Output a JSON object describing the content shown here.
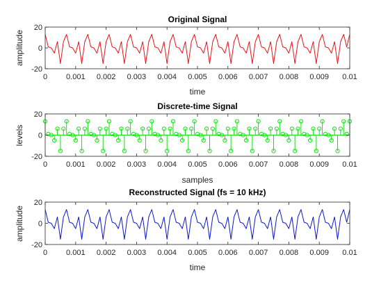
{
  "colors": {
    "background": "#ffffff",
    "axes": "#262626",
    "original_line": "#e8141a",
    "discrete_stem": "#16e016",
    "reconstructed_line": "#0c16cc"
  },
  "chart_data": [
    {
      "type": "line",
      "title": "Original Signal",
      "xlabel": "time",
      "ylabel": "amplitude",
      "xlim": [
        0,
        0.01
      ],
      "ylim": [
        -20,
        20
      ],
      "xticks": [
        "0",
        "0.001",
        "0.002",
        "0.003",
        "0.004",
        "0.005",
        "0.006",
        "0.007",
        "0.008",
        "0.009",
        "0.01"
      ],
      "yticks": [
        "-20",
        "0",
        "20"
      ],
      "grid": false,
      "signal_period_s": 0.0006667,
      "series": [
        {
          "color": "#e8141a",
          "x": [
            0,
            0.0001,
            0.0002,
            0.0003,
            0.0004,
            0.0005,
            0.0006,
            0.0007,
            0.0008,
            0.0009,
            0.001,
            0.0011,
            0.0012,
            0.0013,
            0.0014,
            0.0015,
            0.0016,
            0.0017,
            0.0018,
            0.0019,
            0.002,
            0.0021,
            0.0022,
            0.0023,
            0.0024,
            0.0025,
            0.0026,
            0.0027,
            0.0028,
            0.0029,
            0.003,
            0.0031,
            0.0032,
            0.0033,
            0.0034,
            0.0035,
            0.0036,
            0.0037,
            0.0038,
            0.0039,
            0.004,
            0.0041,
            0.0042,
            0.0043,
            0.0044,
            0.0045,
            0.0046,
            0.0047,
            0.0048,
            0.0049,
            0.005,
            0.0051,
            0.0052,
            0.0053,
            0.0054,
            0.0055,
            0.0056,
            0.0057,
            0.0058,
            0.0059,
            0.006,
            0.0061,
            0.0062,
            0.0063,
            0.0064,
            0.0065,
            0.0066,
            0.0067,
            0.0068,
            0.0069,
            0.007,
            0.0071,
            0.0072,
            0.0073,
            0.0074,
            0.0075,
            0.0076,
            0.0077,
            0.0078,
            0.0079,
            0.008,
            0.0081,
            0.0082,
            0.0083,
            0.0084,
            0.0085,
            0.0086,
            0.0087,
            0.0088,
            0.0089,
            0.009,
            0.0091,
            0.0092,
            0.0093,
            0.0094,
            0.0095,
            0.0096,
            0.0097,
            0.0098,
            0.0099,
            0.01
          ],
          "y": [
            13,
            1,
            0,
            -5,
            6,
            -15,
            6,
            13,
            1,
            0,
            -5,
            6,
            -15,
            6,
            13,
            1,
            0,
            -5,
            6,
            -15,
            6,
            13,
            1,
            0,
            -5,
            6,
            -15,
            6,
            13,
            1,
            0,
            -5,
            6,
            -15,
            6,
            13,
            1,
            0,
            -5,
            6,
            -15,
            6,
            13,
            1,
            0,
            -5,
            6,
            -15,
            6,
            13,
            1,
            0,
            -5,
            6,
            -15,
            6,
            13,
            1,
            0,
            -5,
            6,
            -15,
            6,
            13,
            1,
            0,
            -5,
            6,
            -15,
            6,
            13,
            1,
            0,
            -5,
            6,
            -15,
            6,
            13,
            1,
            0,
            -5,
            6,
            -15,
            6,
            13,
            1,
            0,
            -5,
            6,
            -15,
            6,
            13,
            1,
            0,
            -5,
            6,
            -15,
            6,
            13,
            1,
            13
          ]
        }
      ]
    },
    {
      "type": "stem",
      "title": "Discrete-time Signal",
      "xlabel": "samples",
      "ylabel": "levels",
      "xlim": [
        0,
        0.01
      ],
      "ylim": [
        -20,
        20
      ],
      "xticks": [
        "0",
        "0.001",
        "0.002",
        "0.003",
        "0.004",
        "0.005",
        "0.006",
        "0.007",
        "0.008",
        "0.009",
        "0.01"
      ],
      "yticks": [
        "-20",
        "0",
        "20"
      ],
      "grid": false,
      "series": [
        {
          "color": "#16e016",
          "marker": "circle",
          "x": [
            0,
            0.0001,
            0.0002,
            0.0003,
            0.0004,
            0.0005,
            0.0006,
            0.0007,
            0.0008,
            0.0009,
            0.001,
            0.0011,
            0.0012,
            0.0013,
            0.0014,
            0.0015,
            0.0016,
            0.0017,
            0.0018,
            0.0019,
            0.002,
            0.0021,
            0.0022,
            0.0023,
            0.0024,
            0.0025,
            0.0026,
            0.0027,
            0.0028,
            0.0029,
            0.003,
            0.0031,
            0.0032,
            0.0033,
            0.0034,
            0.0035,
            0.0036,
            0.0037,
            0.0038,
            0.0039,
            0.004,
            0.0041,
            0.0042,
            0.0043,
            0.0044,
            0.0045,
            0.0046,
            0.0047,
            0.0048,
            0.0049,
            0.005,
            0.0051,
            0.0052,
            0.0053,
            0.0054,
            0.0055,
            0.0056,
            0.0057,
            0.0058,
            0.0059,
            0.006,
            0.0061,
            0.0062,
            0.0063,
            0.0064,
            0.0065,
            0.0066,
            0.0067,
            0.0068,
            0.0069,
            0.007,
            0.0071,
            0.0072,
            0.0073,
            0.0074,
            0.0075,
            0.0076,
            0.0077,
            0.0078,
            0.0079,
            0.008,
            0.0081,
            0.0082,
            0.0083,
            0.0084,
            0.0085,
            0.0086,
            0.0087,
            0.0088,
            0.0089,
            0.009,
            0.0091,
            0.0092,
            0.0093,
            0.0094,
            0.0095,
            0.0096,
            0.0097,
            0.0098,
            0.0099,
            0.01
          ],
          "y": [
            13,
            1,
            0,
            -5,
            6,
            -15,
            6,
            13,
            1,
            0,
            -5,
            6,
            -15,
            6,
            13,
            1,
            0,
            -5,
            6,
            -15,
            6,
            13,
            1,
            0,
            -5,
            6,
            -15,
            6,
            13,
            1,
            0,
            -5,
            6,
            -15,
            6,
            13,
            1,
            0,
            -5,
            6,
            -15,
            6,
            13,
            1,
            0,
            -5,
            6,
            -15,
            6,
            13,
            1,
            0,
            -5,
            6,
            -15,
            6,
            13,
            1,
            0,
            -5,
            6,
            -15,
            6,
            13,
            1,
            0,
            -5,
            6,
            -15,
            6,
            13,
            1,
            0,
            -5,
            6,
            -15,
            6,
            13,
            1,
            0,
            -5,
            6,
            -15,
            6,
            13,
            1,
            0,
            -5,
            6,
            -15,
            6,
            13,
            1,
            0,
            -5,
            6,
            -15,
            6,
            13,
            1,
            13
          ]
        }
      ]
    },
    {
      "type": "line",
      "title": "Reconstructed Signal (fs = 10 kHz)",
      "xlabel": "time",
      "ylabel": "amplitude",
      "xlim": [
        0,
        0.01
      ],
      "ylim": [
        -20,
        20
      ],
      "xticks": [
        "0",
        "0.001",
        "0.002",
        "0.003",
        "0.004",
        "0.005",
        "0.006",
        "0.007",
        "0.008",
        "0.009",
        "0.01"
      ],
      "yticks": [
        "-20",
        "0",
        "20"
      ],
      "grid": false,
      "series": [
        {
          "color": "#0c16cc",
          "x": [
            0,
            0.0001,
            0.0002,
            0.0003,
            0.0004,
            0.0005,
            0.0006,
            0.0007,
            0.0008,
            0.0009,
            0.001,
            0.0011,
            0.0012,
            0.0013,
            0.0014,
            0.0015,
            0.0016,
            0.0017,
            0.0018,
            0.0019,
            0.002,
            0.0021,
            0.0022,
            0.0023,
            0.0024,
            0.0025,
            0.0026,
            0.0027,
            0.0028,
            0.0029,
            0.003,
            0.0031,
            0.0032,
            0.0033,
            0.0034,
            0.0035,
            0.0036,
            0.0037,
            0.0038,
            0.0039,
            0.004,
            0.0041,
            0.0042,
            0.0043,
            0.0044,
            0.0045,
            0.0046,
            0.0047,
            0.0048,
            0.0049,
            0.005,
            0.0051,
            0.0052,
            0.0053,
            0.0054,
            0.0055,
            0.0056,
            0.0057,
            0.0058,
            0.0059,
            0.006,
            0.0061,
            0.0062,
            0.0063,
            0.0064,
            0.0065,
            0.0066,
            0.0067,
            0.0068,
            0.0069,
            0.007,
            0.0071,
            0.0072,
            0.0073,
            0.0074,
            0.0075,
            0.0076,
            0.0077,
            0.0078,
            0.0079,
            0.008,
            0.0081,
            0.0082,
            0.0083,
            0.0084,
            0.0085,
            0.0086,
            0.0087,
            0.0088,
            0.0089,
            0.009,
            0.0091,
            0.0092,
            0.0093,
            0.0094,
            0.0095,
            0.0096,
            0.0097,
            0.0098,
            0.0099,
            0.01
          ],
          "y": [
            13,
            1,
            0,
            -5,
            6,
            -15,
            6,
            13,
            1,
            0,
            -5,
            6,
            -15,
            6,
            13,
            1,
            0,
            -5,
            6,
            -15,
            6,
            13,
            1,
            0,
            -5,
            6,
            -15,
            6,
            13,
            1,
            0,
            -5,
            6,
            -15,
            6,
            13,
            1,
            0,
            -5,
            6,
            -15,
            6,
            13,
            1,
            0,
            -5,
            6,
            -15,
            6,
            13,
            1,
            0,
            -5,
            6,
            -15,
            6,
            13,
            1,
            0,
            -5,
            6,
            -15,
            6,
            13,
            1,
            0,
            -5,
            6,
            -15,
            6,
            13,
            1,
            0,
            -5,
            6,
            -15,
            6,
            13,
            1,
            0,
            -5,
            6,
            -15,
            6,
            13,
            1,
            0,
            -5,
            6,
            -15,
            6,
            13,
            1,
            0,
            -5,
            6,
            -15,
            6,
            13,
            1,
            13
          ]
        }
      ]
    }
  ]
}
